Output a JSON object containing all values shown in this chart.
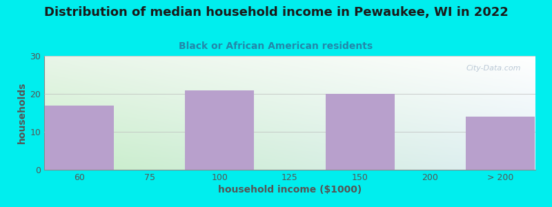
{
  "title": "Distribution of median household income in Pewaukee, WI in 2022",
  "subtitle": "Black or African American residents",
  "xlabel": "household income ($1000)",
  "ylabel": "households",
  "background_color": "#00EEEE",
  "bar_color": "#B8A0CC",
  "categories": [
    "60",
    "75",
    "100",
    "125",
    "150",
    "200",
    "> 200"
  ],
  "values": [
    17,
    0,
    21,
    0,
    20,
    0,
    14
  ],
  "ylim": [
    0,
    30
  ],
  "yticks": [
    0,
    10,
    20,
    30
  ],
  "title_fontsize": 13,
  "subtitle_fontsize": 10,
  "label_fontsize": 10,
  "tick_fontsize": 9,
  "title_color": "#1a1a1a",
  "subtitle_color": "#2288AA",
  "axis_color": "#555555",
  "watermark": "City-Data.com",
  "plot_bg_topleft": "#C8EED0",
  "plot_bg_topright": "#FFFFFF",
  "plot_bg_bottomleft": "#C8EED0",
  "plot_bg_bottomright": "#EEEEFF"
}
